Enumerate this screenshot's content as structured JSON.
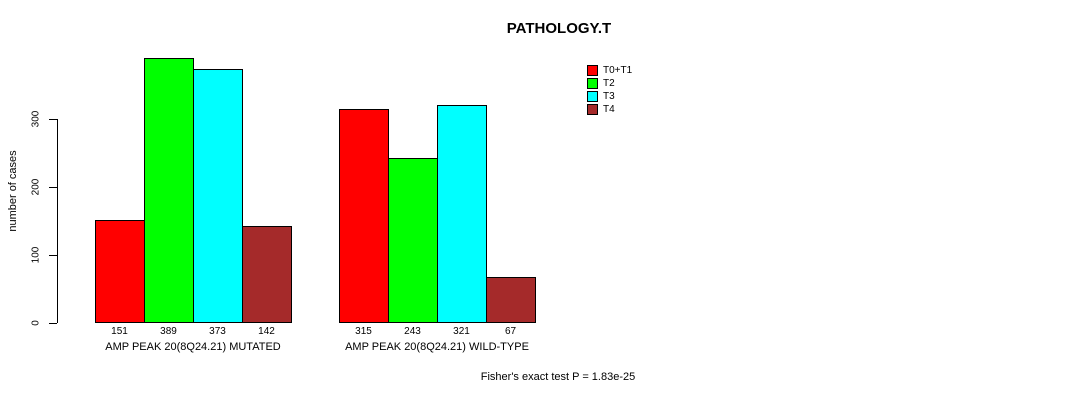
{
  "chart": {
    "title": "PATHOLOGY.T",
    "ylabel": "number of cases",
    "footer": "Fisher's exact test P = 1.83e-25"
  },
  "chart_data": {
    "type": "bar",
    "title": "PATHOLOGY.T",
    "xlabel": "",
    "ylabel": "number of cases",
    "categories": [
      "AMP PEAK 20(8Q24.21) MUTATED",
      "AMP PEAK 20(8Q24.21) WILD-TYPE"
    ],
    "series": [
      {
        "name": "T0+T1",
        "color": "#FF0000",
        "values": [
          151,
          315
        ]
      },
      {
        "name": "T2",
        "color": "#00FF00",
        "values": [
          389,
          243
        ]
      },
      {
        "name": "T3",
        "color": "#00FFFF",
        "values": [
          373,
          321
        ]
      },
      {
        "name": "T4",
        "color": "#A52A2A",
        "values": [
          142,
          67
        ]
      }
    ],
    "yticks": [
      0,
      100,
      200,
      300
    ],
    "ylim": [
      0,
      391
    ],
    "grid": false,
    "legend_position": "top-right",
    "bar_value_labels": true,
    "annotation": "Fisher's exact test P = 1.83e-25"
  }
}
